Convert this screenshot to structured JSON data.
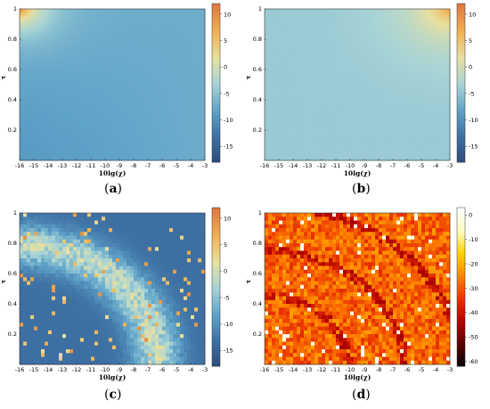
{
  "chart_data": [
    {
      "id": "a",
      "type": "heatmap",
      "caption": "a",
      "xlabel": "10lg(χ)",
      "ylabel": "τ",
      "x_ticks": [
        "-16",
        "-15",
        "-14",
        "-13",
        "-12",
        "-11",
        "-10",
        "-9",
        "-8",
        "-7",
        "-6",
        "-5",
        "-4",
        "-3"
      ],
      "y_ticks": [
        "0.2",
        "0.4",
        "0.6",
        "0.8",
        "1"
      ],
      "xlim": [
        -16,
        -3
      ],
      "ylim": [
        0,
        1
      ],
      "colorbar": {
        "ticks": [
          "10",
          "5",
          "0",
          "-5",
          "-10",
          "-15"
        ],
        "range": [
          -18,
          12
        ],
        "colormap": "blue-teal-yellow-orange"
      },
      "pattern": "smooth",
      "description_values": {
        "bottom_right": -7,
        "top_left_peak": 10
      }
    },
    {
      "id": "b",
      "type": "heatmap",
      "caption": "b",
      "xlabel": "10lg(χ)",
      "ylabel": "τ",
      "x_ticks": [
        "-16",
        "-15",
        "-14",
        "-13",
        "-12",
        "-11",
        "-10",
        "-9",
        "-8",
        "-7",
        "-6",
        "-5",
        "-4",
        "-3"
      ],
      "y_ticks": [
        "0.2",
        "0.4",
        "0.6",
        "0.8",
        "1"
      ],
      "xlim": [
        -16,
        -3
      ],
      "ylim": [
        0,
        1
      ],
      "colorbar": {
        "ticks": [
          "10",
          "5",
          "0",
          "-5",
          "-10",
          "-15"
        ],
        "range": [
          -18,
          12
        ],
        "colormap": "blue-teal-yellow-orange"
      },
      "pattern": "flat",
      "description_values": {
        "background": -4,
        "top_right_peak": 8
      }
    },
    {
      "id": "c",
      "type": "heatmap",
      "caption": "c",
      "xlabel": "10lg(χ)",
      "ylabel": "τ",
      "x_ticks": [
        "-16",
        "-15",
        "-14",
        "-13",
        "-12",
        "-11",
        "-10",
        "-9",
        "-8",
        "-7",
        "-6",
        "-5",
        "-4",
        "-3"
      ],
      "y_ticks": [
        "0.2",
        "0.4",
        "0.6",
        "0.8",
        "1"
      ],
      "xlim": [
        -16,
        -3
      ],
      "ylim": [
        0,
        1
      ],
      "colorbar": {
        "ticks": [
          "10",
          "5",
          "0",
          "-5",
          "-10",
          "-15"
        ],
        "range": [
          -18,
          12
        ],
        "colormap": "blue-teal-yellow-orange"
      },
      "pattern": "noisy-arc",
      "description_values": {
        "background": -13,
        "arc_peak": 0
      }
    },
    {
      "id": "d",
      "type": "heatmap",
      "caption": "d",
      "xlabel": "10lg(χ)",
      "ylabel": "τ",
      "x_ticks": [
        "-16",
        "-15",
        "-14",
        "-13",
        "-12",
        "-11",
        "-10",
        "-9",
        "-8",
        "-7",
        "-6",
        "-5",
        "-4",
        "-3"
      ],
      "y_ticks": [
        "0.2",
        "0.4",
        "0.6",
        "0.8",
        "1"
      ],
      "xlim": [
        -16,
        -3
      ],
      "ylim": [
        0,
        1
      ],
      "colorbar": {
        "ticks": [
          "0",
          "-10",
          "-20",
          "-30",
          "-40",
          "-50",
          "-60"
        ],
        "range": [
          -62,
          3
        ],
        "colormap": "hot"
      },
      "pattern": "noisy-arcs-hot",
      "description_values": {
        "background": -28,
        "arc_value": -45
      }
    }
  ],
  "colormaps": {
    "blue-teal-yellow-orange": [
      "#2b4a7a",
      "#3d6fa3",
      "#5fa3c9",
      "#a8d4d6",
      "#e8e0a0",
      "#f0b050",
      "#e07840"
    ],
    "hot": [
      "#000000",
      "#5a0000",
      "#b00000",
      "#e83000",
      "#ff8000",
      "#ffd000",
      "#ffffc0",
      "#ffffff"
    ]
  }
}
